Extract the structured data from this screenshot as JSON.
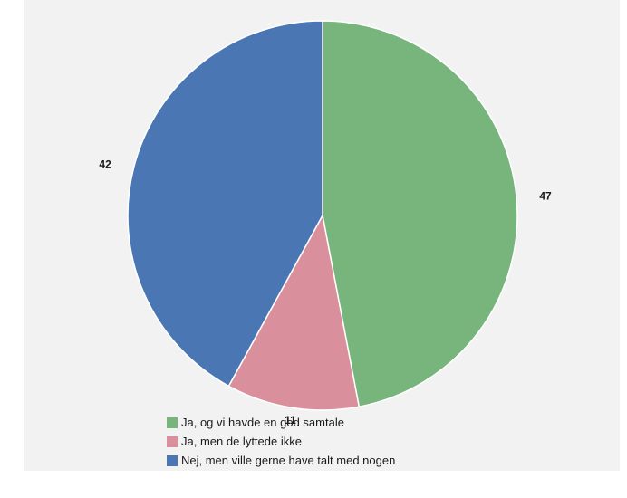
{
  "chart_data": {
    "type": "pie",
    "slices": [
      {
        "label": "Ja, og vi havde en god samtale",
        "value": 47,
        "value_label": "47",
        "color": "#77b57d"
      },
      {
        "label": "Ja, men de lyttede ikke",
        "value": 11,
        "value_label": "11",
        "color": "#d9909c"
      },
      {
        "label": "Nej, men ville gerne have talt med nogen",
        "value": 42,
        "value_label": "42",
        "color": "#4a77b4"
      }
    ],
    "start_angle_deg": 0,
    "direction": "clockwise",
    "legend_position": "bottom"
  }
}
